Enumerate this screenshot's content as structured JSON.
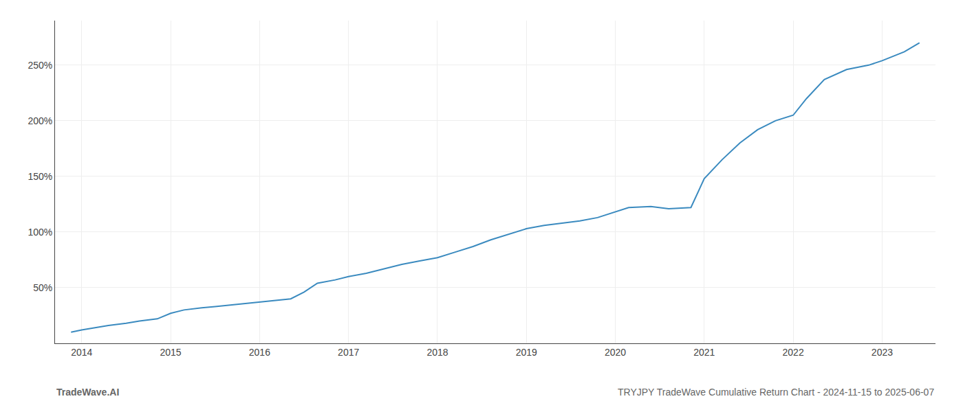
{
  "chart_data": {
    "type": "line",
    "title": "TRYJPY TradeWave Cumulative Return Chart - 2024-11-15 to 2025-06-07",
    "annotations": [
      "TradeWave.AI"
    ],
    "x": [
      2013.88,
      2014.0,
      2014.15,
      2014.3,
      2014.5,
      2014.65,
      2014.85,
      2015.0,
      2015.15,
      2015.35,
      2015.5,
      2015.75,
      2015.9,
      2016.0,
      2016.15,
      2016.35,
      2016.5,
      2016.65,
      2016.85,
      2017.0,
      2017.2,
      2017.4,
      2017.6,
      2017.8,
      2018.0,
      2018.2,
      2018.4,
      2018.6,
      2018.8,
      2019.0,
      2019.2,
      2019.4,
      2019.6,
      2019.8,
      2020.0,
      2020.08,
      2020.15,
      2020.4,
      2020.6,
      2020.85,
      2021.0,
      2021.2,
      2021.4,
      2021.6,
      2021.8,
      2022.0,
      2022.15,
      2022.35,
      2022.6,
      2022.85,
      2023.0,
      2023.25,
      2023.42
    ],
    "values": [
      10,
      12,
      14,
      16,
      18,
      20,
      22,
      27,
      30,
      32,
      33,
      35,
      36,
      37,
      38,
      40,
      46,
      54,
      57,
      60,
      63,
      67,
      71,
      74,
      77,
      82,
      87,
      93,
      98,
      103,
      106,
      108,
      110,
      113,
      118,
      120,
      122,
      123,
      121,
      122,
      148,
      165,
      180,
      192,
      200,
      205,
      220,
      237,
      246,
      250,
      254,
      262,
      270
    ],
    "color": "#3a8abf",
    "xlim": [
      2013.7,
      2023.6
    ],
    "xticks": [
      2014,
      2015,
      2016,
      2017,
      2018,
      2019,
      2020,
      2021,
      2022,
      2023
    ],
    "ylim": [
      0,
      290
    ],
    "yticks": [
      {
        "value": 50,
        "label": "50%"
      },
      {
        "value": 100,
        "label": "100%"
      },
      {
        "value": 150,
        "label": "150%"
      },
      {
        "value": 200,
        "label": "200%"
      },
      {
        "value": 250,
        "label": "250%"
      }
    ],
    "grid": true
  }
}
